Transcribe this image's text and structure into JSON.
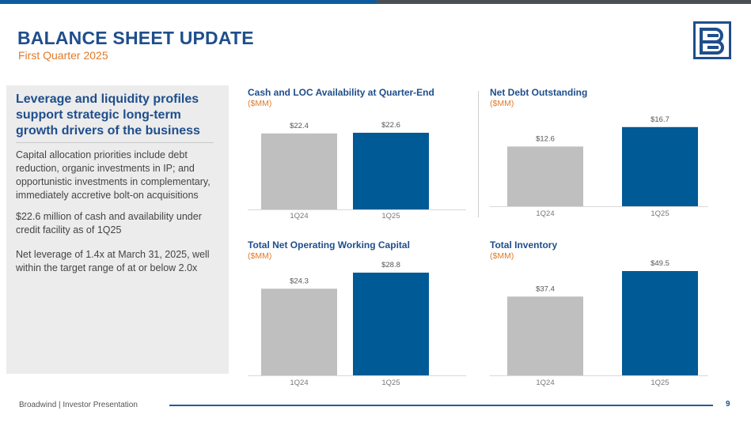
{
  "colors": {
    "brand_blue": "#1f4e8c",
    "bar_blue": "#005a96",
    "bar_gray": "#bfbfbf",
    "accent_orange": "#e07b2a",
    "top_bar_blue": "#0e5a9c",
    "top_bar_gray": "#4a4f54"
  },
  "header": {
    "title": "BALANCE SHEET UPDATE",
    "subtitle": "First Quarter 2025"
  },
  "logo": {
    "icon": "broadwind-logo-icon"
  },
  "left_panel": {
    "heading": "Leverage and liquidity profiles support strategic long-term growth drivers of the business",
    "paragraphs": [
      "Capital allocation priorities include debt reduction, organic investments in IP; and opportunistic investments in complementary, immediately accretive bolt-on acquisitions",
      "$22.6 million of cash and availability under credit facility as of 1Q25",
      "Net leverage of 1.4x at March 31, 2025, well within the target range of at or below 2.0x"
    ]
  },
  "chart_data": [
    {
      "type": "bar",
      "title": "Cash and  LOC Availability at Quarter-End",
      "unit": "($MM)",
      "categories": [
        "1Q24",
        "1Q25"
      ],
      "values": [
        22.4,
        22.6
      ],
      "value_labels": [
        "$22.4",
        "$22.6"
      ],
      "ylim": [
        0,
        24
      ]
    },
    {
      "type": "bar",
      "title": "Net Debt Outstanding",
      "unit": "($MM)",
      "categories": [
        "1Q24",
        "1Q25"
      ],
      "values": [
        12.6,
        16.7
      ],
      "value_labels": [
        "$12.6",
        "$16.7"
      ],
      "ylim": [
        0,
        17
      ]
    },
    {
      "type": "bar",
      "title": "Total Net Operating Working Capital",
      "unit": "($MM)",
      "categories": [
        "1Q24",
        "1Q25"
      ],
      "values": [
        24.3,
        28.8
      ],
      "value_labels": [
        "$24.3",
        "$28.8"
      ],
      "ylim": [
        0,
        28.8
      ]
    },
    {
      "type": "bar",
      "title": "Total Inventory",
      "unit": "($MM)",
      "categories": [
        "1Q24",
        "1Q25"
      ],
      "values": [
        37.4,
        49.5
      ],
      "value_labels": [
        "$37.4",
        "$49.5"
      ],
      "ylim": [
        0,
        49.5
      ]
    }
  ],
  "footer": {
    "text": "Broadwind  | Investor Presentation",
    "page": "9"
  }
}
